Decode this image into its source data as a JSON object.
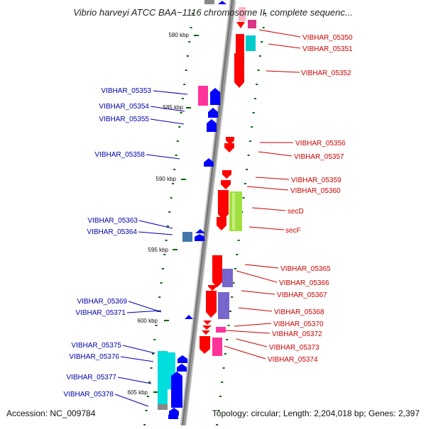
{
  "title": "Vibrio harveyi ATCC BAA−1116 chromosome II, complete sequenc...",
  "footer": {
    "accession": "Accession: NC_009784",
    "summary": "Topology: circular; Length: 2,204,018 bp; Genes: 2,397"
  },
  "colors": {
    "backbone": "#808080",
    "forward_label": "#cc0000",
    "reverse_label": "#0000aa",
    "tick": "#006600",
    "gene_red": "#ff0000",
    "gene_blue": "#0000ff",
    "gene_magenta": "#ff3399",
    "gene_cyan": "#00cccc",
    "gene_purple": "#7777cc",
    "gene_green": "#99dd33",
    "gene_steel": "#4477aa"
  },
  "scale": {
    "unit": "kbp",
    "ticks": [
      "580 kbp",
      "585 kbp",
      "590 kbp",
      "595 kbp",
      "600 kbp",
      "605 kbp"
    ]
  },
  "genes_right": [
    {
      "label": "VIBHAR_05350"
    },
    {
      "label": "VIBHAR_05351"
    },
    {
      "label": "VIBHAR_05352"
    },
    {
      "label": "VIBHAR_05356"
    },
    {
      "label": "VIBHAR_05357"
    },
    {
      "label": "VIBHAR_05359"
    },
    {
      "label": "VIBHAR_05360"
    },
    {
      "label": "secD"
    },
    {
      "label": "secF"
    },
    {
      "label": "VIBHAR_05365"
    },
    {
      "label": "VIBHAR_05366"
    },
    {
      "label": "VIBHAR_05367"
    },
    {
      "label": "VIBHAR_05368"
    },
    {
      "label": "VIBHAR_05370"
    },
    {
      "label": "VIBHAR_05372"
    },
    {
      "label": "VIBHAR_05373"
    },
    {
      "label": "VIBHAR_05374"
    }
  ],
  "genes_left": [
    {
      "label": "VIBHAR_05353"
    },
    {
      "label": "VIBHAR_05354"
    },
    {
      "label": "VIBHAR_05355"
    },
    {
      "label": "VIBHAR_05358"
    },
    {
      "label": "VIBHAR_05363"
    },
    {
      "label": "VIBHAR_05364"
    },
    {
      "label": "VIBHAR_05369"
    },
    {
      "label": "VIBHAR_05371"
    },
    {
      "label": "VIBHAR_05375"
    },
    {
      "label": "VIBHAR_05376"
    },
    {
      "label": "VIBHAR_05377"
    },
    {
      "label": "VIBHAR_05378"
    }
  ]
}
